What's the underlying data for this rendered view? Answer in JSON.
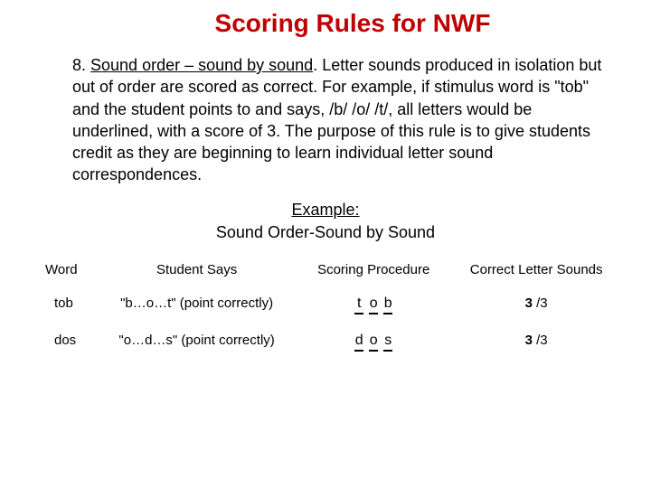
{
  "title": "Scoring Rules for NWF",
  "rule": {
    "number": "8. ",
    "heading": "Sound order – sound by sound",
    "body": ". Letter sounds produced in isolation but out of order are scored as correct. For example, if stimulus word is \"tob\" and the student points to and says, /b/ /o/ /t/, all letters would be underlined, with a score of 3. The purpose of this rule is to give students credit as they are beginning to learn individual letter sound correspondences."
  },
  "example_label": "Example:",
  "example_subtitle": "Sound Order-Sound by Sound",
  "table": {
    "headers": {
      "word": "Word",
      "says": "Student Says",
      "proc": "Scoring Procedure",
      "cls": "Correct Letter Sounds"
    },
    "rows": [
      {
        "word": "tob",
        "says": "\"b…o…t\" (point correctly)",
        "letters": [
          "t",
          "o",
          "b"
        ],
        "score_num": "3",
        "score_denom": " /3"
      },
      {
        "word": "dos",
        "says": "\"o…d…s\" (point correctly)",
        "letters": [
          "d",
          "o",
          "s"
        ],
        "score_num": "3",
        "score_denom": " /3"
      }
    ]
  }
}
